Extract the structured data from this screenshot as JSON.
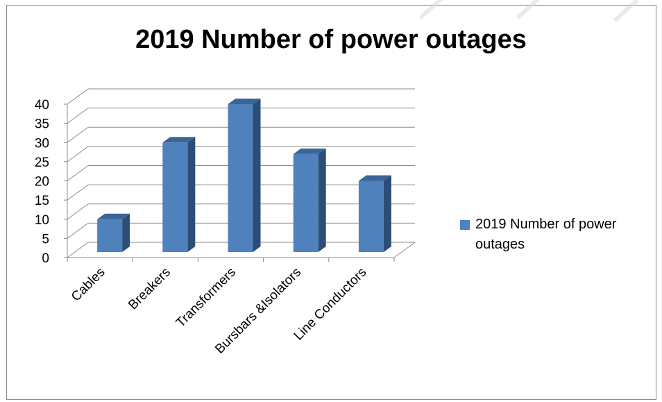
{
  "chart_data": {
    "type": "bar",
    "title": "2019 Number of power outages",
    "categories": [
      "Cables",
      "Breakers",
      "Transformers",
      "Bursbars &Isolators",
      "Line Conductors"
    ],
    "series": [
      {
        "name": "2019 Number of power outages",
        "values": [
          10,
          30,
          40,
          27,
          20
        ]
      }
    ],
    "yticks": [
      "0",
      "5",
      "10",
      "15",
      "20",
      "25",
      "30",
      "35",
      "40"
    ],
    "ylim": [
      0,
      40
    ],
    "grid": true,
    "legend": "right",
    "colors": {
      "bar_front": "#4f81bd",
      "bar_side": "#2c4d75",
      "bar_top": "#3a6599",
      "grid": "#8a8a8a"
    }
  }
}
